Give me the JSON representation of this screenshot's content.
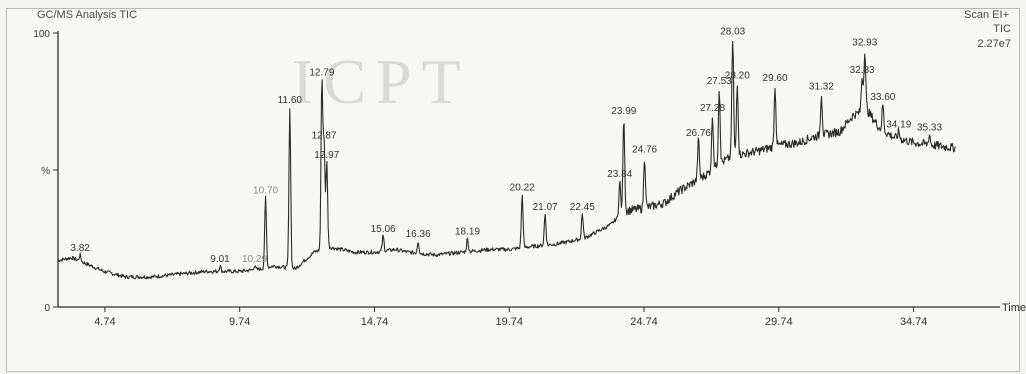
{
  "header": {
    "title_left": "GC/MS Analysis TIC",
    "right_line1": "Scan EI+",
    "right_line2": "TIC",
    "right_line3": "2.27e7"
  },
  "watermark_text": "ICPT",
  "colors": {
    "trace": "#2b2b2b",
    "axis": "#2f2f2f",
    "label": "#333333",
    "label_faint": "#8a8a8a"
  },
  "chart_data": {
    "type": "line",
    "title": "",
    "xlabel": "Time",
    "ylabel": "",
    "xlim": [
      3.0,
      37.5
    ],
    "ylim": [
      0,
      100
    ],
    "x_ticks": [
      {
        "value": 4.74,
        "label": "4.74"
      },
      {
        "value": 9.74,
        "label": "9.74"
      },
      {
        "value": 14.74,
        "label": "14.74"
      },
      {
        "value": 19.74,
        "label": "19.74"
      },
      {
        "value": 24.74,
        "label": "24.74"
      },
      {
        "value": 29.74,
        "label": "29.74"
      },
      {
        "value": 34.74,
        "label": "34.74"
      }
    ],
    "y_ticks": [
      {
        "value": 0,
        "label": "0"
      },
      {
        "value": 50,
        "label": "%"
      },
      {
        "value": 100,
        "label": "100"
      }
    ],
    "baseline": [
      [
        3.0,
        17
      ],
      [
        3.5,
        18
      ],
      [
        4.0,
        16
      ],
      [
        4.7,
        13
      ],
      [
        5.5,
        11
      ],
      [
        6.5,
        11
      ],
      [
        7.5,
        12
      ],
      [
        8.5,
        13
      ],
      [
        9.74,
        13
      ],
      [
        10.6,
        14
      ],
      [
        11.0,
        15
      ],
      [
        11.8,
        14
      ],
      [
        12.5,
        20
      ],
      [
        13.0,
        22
      ],
      [
        13.5,
        21
      ],
      [
        14.0,
        20
      ],
      [
        14.74,
        20
      ],
      [
        15.5,
        21
      ],
      [
        16.0,
        20
      ],
      [
        17.0,
        19
      ],
      [
        18.0,
        20
      ],
      [
        19.0,
        21
      ],
      [
        19.74,
        21
      ],
      [
        20.5,
        22
      ],
      [
        21.5,
        23
      ],
      [
        22.5,
        25
      ],
      [
        23.5,
        30
      ],
      [
        24.0,
        35
      ],
      [
        24.74,
        36
      ],
      [
        25.5,
        38
      ],
      [
        26.0,
        42
      ],
      [
        26.5,
        45
      ],
      [
        27.0,
        48
      ],
      [
        27.5,
        52
      ],
      [
        28.0,
        55
      ],
      [
        28.5,
        56
      ],
      [
        29.0,
        57
      ],
      [
        29.74,
        59
      ],
      [
        30.5,
        60
      ],
      [
        31.0,
        62
      ],
      [
        32.0,
        64
      ],
      [
        32.5,
        70
      ],
      [
        33.0,
        72
      ],
      [
        33.5,
        65
      ],
      [
        34.0,
        62
      ],
      [
        34.74,
        60
      ],
      [
        35.5,
        59
      ],
      [
        36.3,
        58
      ]
    ],
    "peaks": [
      {
        "rt": 3.82,
        "height": 19,
        "label": "3.82"
      },
      {
        "rt": 9.01,
        "height": 15,
        "label": "9.01"
      },
      {
        "rt": 10.29,
        "height": 15,
        "label": "10.29",
        "faint": true
      },
      {
        "rt": 10.7,
        "height": 40,
        "label": "10.70",
        "faint": true
      },
      {
        "rt": 11.6,
        "height": 73,
        "label": "11.60"
      },
      {
        "rt": 12.79,
        "height": 83,
        "label": "12.79"
      },
      {
        "rt": 12.87,
        "height": 60,
        "label": "12.87"
      },
      {
        "rt": 12.97,
        "height": 53,
        "label": "12.97"
      },
      {
        "rt": 15.06,
        "height": 26,
        "label": "15.06"
      },
      {
        "rt": 16.36,
        "height": 24,
        "label": "16.36"
      },
      {
        "rt": 18.19,
        "height": 25,
        "label": "18.19"
      },
      {
        "rt": 20.22,
        "height": 41,
        "label": "20.22"
      },
      {
        "rt": 21.07,
        "height": 34,
        "label": "21.07"
      },
      {
        "rt": 22.45,
        "height": 34,
        "label": "22.45"
      },
      {
        "rt": 23.84,
        "height": 46,
        "label": "23.84"
      },
      {
        "rt": 23.99,
        "height": 69,
        "label": "23.99"
      },
      {
        "rt": 24.76,
        "height": 55,
        "label": "24.76"
      },
      {
        "rt": 26.76,
        "height": 61,
        "label": "26.76"
      },
      {
        "rt": 27.28,
        "height": 70,
        "label": "27.28"
      },
      {
        "rt": 27.53,
        "height": 80,
        "label": "27.53"
      },
      {
        "rt": 28.03,
        "height": 98,
        "label": "28.03"
      },
      {
        "rt": 28.2,
        "height": 82,
        "label": "28.20"
      },
      {
        "rt": 29.6,
        "height": 81,
        "label": "29.60"
      },
      {
        "rt": 31.32,
        "height": 78,
        "label": "31.32"
      },
      {
        "rt": 32.83,
        "height": 84,
        "label": "32.83"
      },
      {
        "rt": 32.93,
        "height": 94,
        "label": "32.93"
      },
      {
        "rt": 33.6,
        "height": 74,
        "label": "33.60"
      },
      {
        "rt": 34.19,
        "height": 64,
        "label": "34.19"
      },
      {
        "rt": 35.33,
        "height": 63,
        "label": "35.33"
      }
    ],
    "grid": false,
    "legend": "none"
  }
}
